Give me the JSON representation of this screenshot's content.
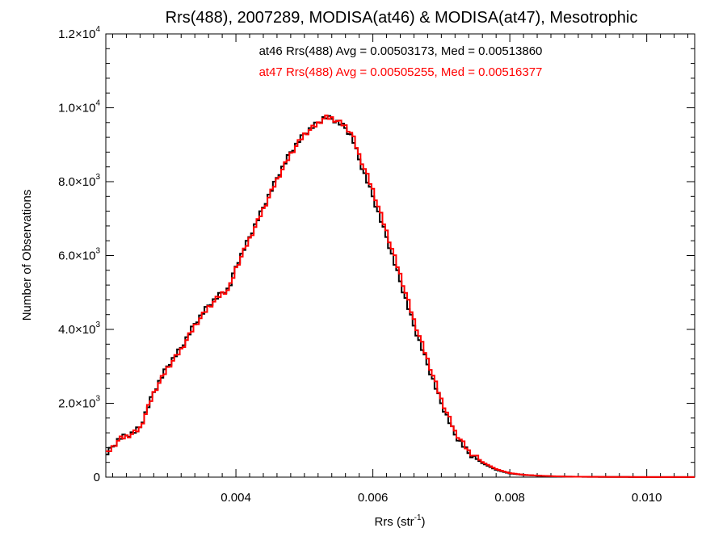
{
  "chart_data": {
    "type": "line",
    "title": "Rrs(488), 2007289, MODISA(at46) & MODISA(at47), Mesotrophic",
    "xlabel": "Rrs (str",
    "xlabel_sup": "-1",
    "xlabel_close": ")",
    "ylabel": "Number of Observations",
    "xlim": [
      0.0021,
      0.0107
    ],
    "ylim": [
      0,
      12000
    ],
    "grid": false,
    "x_ticks": [
      {
        "value": 0.004,
        "label": "0.004"
      },
      {
        "value": 0.006,
        "label": "0.006"
      },
      {
        "value": 0.008,
        "label": "0.008"
      },
      {
        "value": 0.01,
        "label": "0.010"
      }
    ],
    "y_ticks": [
      {
        "value": 0,
        "mant": "0",
        "exp": ""
      },
      {
        "value": 2000,
        "mant": "2.0×10",
        "exp": "3"
      },
      {
        "value": 4000,
        "mant": "4.0×10",
        "exp": "3"
      },
      {
        "value": 6000,
        "mant": "6.0×10",
        "exp": "3"
      },
      {
        "value": 8000,
        "mant": "8.0×10",
        "exp": "3"
      },
      {
        "value": 10000,
        "mant": "1.0×10",
        "exp": "4"
      },
      {
        "value": 12000,
        "mant": "1.2×10",
        "exp": "4"
      }
    ],
    "annotations": [
      {
        "text": "at46 Rrs(488) Avg = 0.00503173, Med = 0.00513860",
        "color": "#000000"
      },
      {
        "text": "at47 Rrs(488) Avg = 0.00505255, Med = 0.00516377",
        "color": "#ff0000"
      }
    ],
    "x": [
      0.0021,
      0.0023,
      0.0025,
      0.0026,
      0.0028,
      0.003,
      0.0032,
      0.0034,
      0.0036,
      0.0038,
      0.0039,
      0.004,
      0.0042,
      0.0044,
      0.0046,
      0.0048,
      0.005,
      0.0052,
      0.0053,
      0.0054,
      0.0055,
      0.0056,
      0.0057,
      0.0058,
      0.006,
      0.0062,
      0.0064,
      0.0066,
      0.0068,
      0.007,
      0.0072,
      0.0074,
      0.0076,
      0.0078,
      0.008,
      0.0082,
      0.0084,
      0.0086,
      0.0088,
      0.009,
      0.0095,
      0.01,
      0.0107
    ],
    "series": [
      {
        "color": "#000000",
        "values": [
          600,
          1050,
          1200,
          1350,
          2300,
          3000,
          3500,
          4150,
          4650,
          5000,
          5100,
          5700,
          6500,
          7300,
          8100,
          8800,
          9300,
          9600,
          9750,
          9700,
          9600,
          9450,
          9200,
          8600,
          7600,
          6500,
          5300,
          4100,
          3050,
          2000,
          1150,
          650,
          380,
          200,
          100,
          60,
          40,
          25,
          15,
          10,
          5,
          3,
          2
        ]
      },
      {
        "color": "#ff0000",
        "values": [
          600,
          1030,
          1180,
          1320,
          2280,
          2950,
          3450,
          4100,
          4600,
          4980,
          5080,
          5650,
          6450,
          7250,
          8050,
          8750,
          9280,
          9580,
          9740,
          9720,
          9620,
          9500,
          9280,
          8720,
          7780,
          6650,
          5480,
          4250,
          3180,
          2100,
          1230,
          700,
          410,
          220,
          110,
          65,
          42,
          27,
          16,
          11,
          6,
          3,
          2
        ]
      }
    ]
  }
}
